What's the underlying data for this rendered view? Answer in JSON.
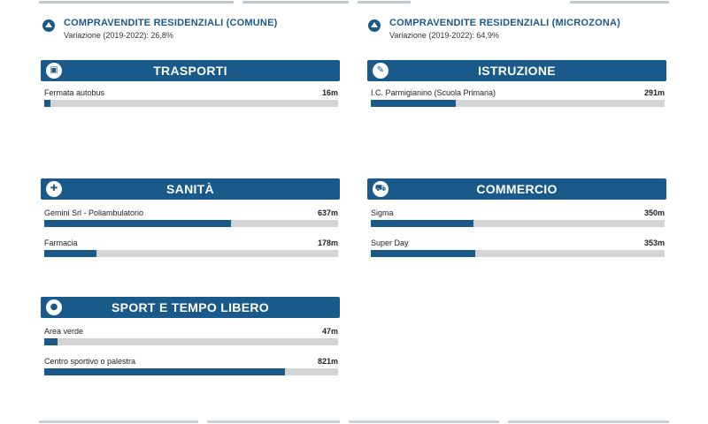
{
  "sales": [
    {
      "title": "COMPRAVENDITE RESIDENZIALI (COMUNE)",
      "subtitle": "Variazione (2019-2022): 26,8%"
    },
    {
      "title": "COMPRAVENDITE RESIDENZIALI (MICROZONA)",
      "subtitle": "Variazione (2019-2022): 64,9%"
    }
  ],
  "categories": [
    {
      "title": "TRASPORTI",
      "icon": "bus-icon",
      "items": [
        {
          "name": "Fermata autobus",
          "distance": "16m",
          "fraction": 0.02
        }
      ]
    },
    {
      "title": "ISTRUZIONE",
      "icon": "school-icon",
      "items": [
        {
          "name": "I.C. Parmigianino (Scuola Primaria)",
          "distance": "291m",
          "fraction": 0.29
        }
      ]
    },
    {
      "title": "SANITÀ",
      "icon": "medical-icon",
      "items": [
        {
          "name": "Gemini Srl - Poliambulatorio",
          "distance": "637m",
          "fraction": 0.635
        },
        {
          "name": "Farmacia",
          "distance": "178m",
          "fraction": 0.178
        }
      ]
    },
    {
      "title": "COMMERCIO",
      "icon": "cart-icon",
      "items": [
        {
          "name": "Sigma",
          "distance": "350m",
          "fraction": 0.35
        },
        {
          "name": "Super Day",
          "distance": "353m",
          "fraction": 0.355
        }
      ]
    },
    {
      "title": "SPORT E TEMPO LIBERO",
      "icon": "sport-icon",
      "items": [
        {
          "name": "Area verde",
          "distance": "47m",
          "fraction": 0.045
        },
        {
          "name": "Centro sportivo o palestra",
          "distance": "821m",
          "fraction": 0.82
        }
      ]
    }
  ],
  "colors": {
    "accent": "#1a5a8a",
    "track": "#d4d4d4"
  }
}
